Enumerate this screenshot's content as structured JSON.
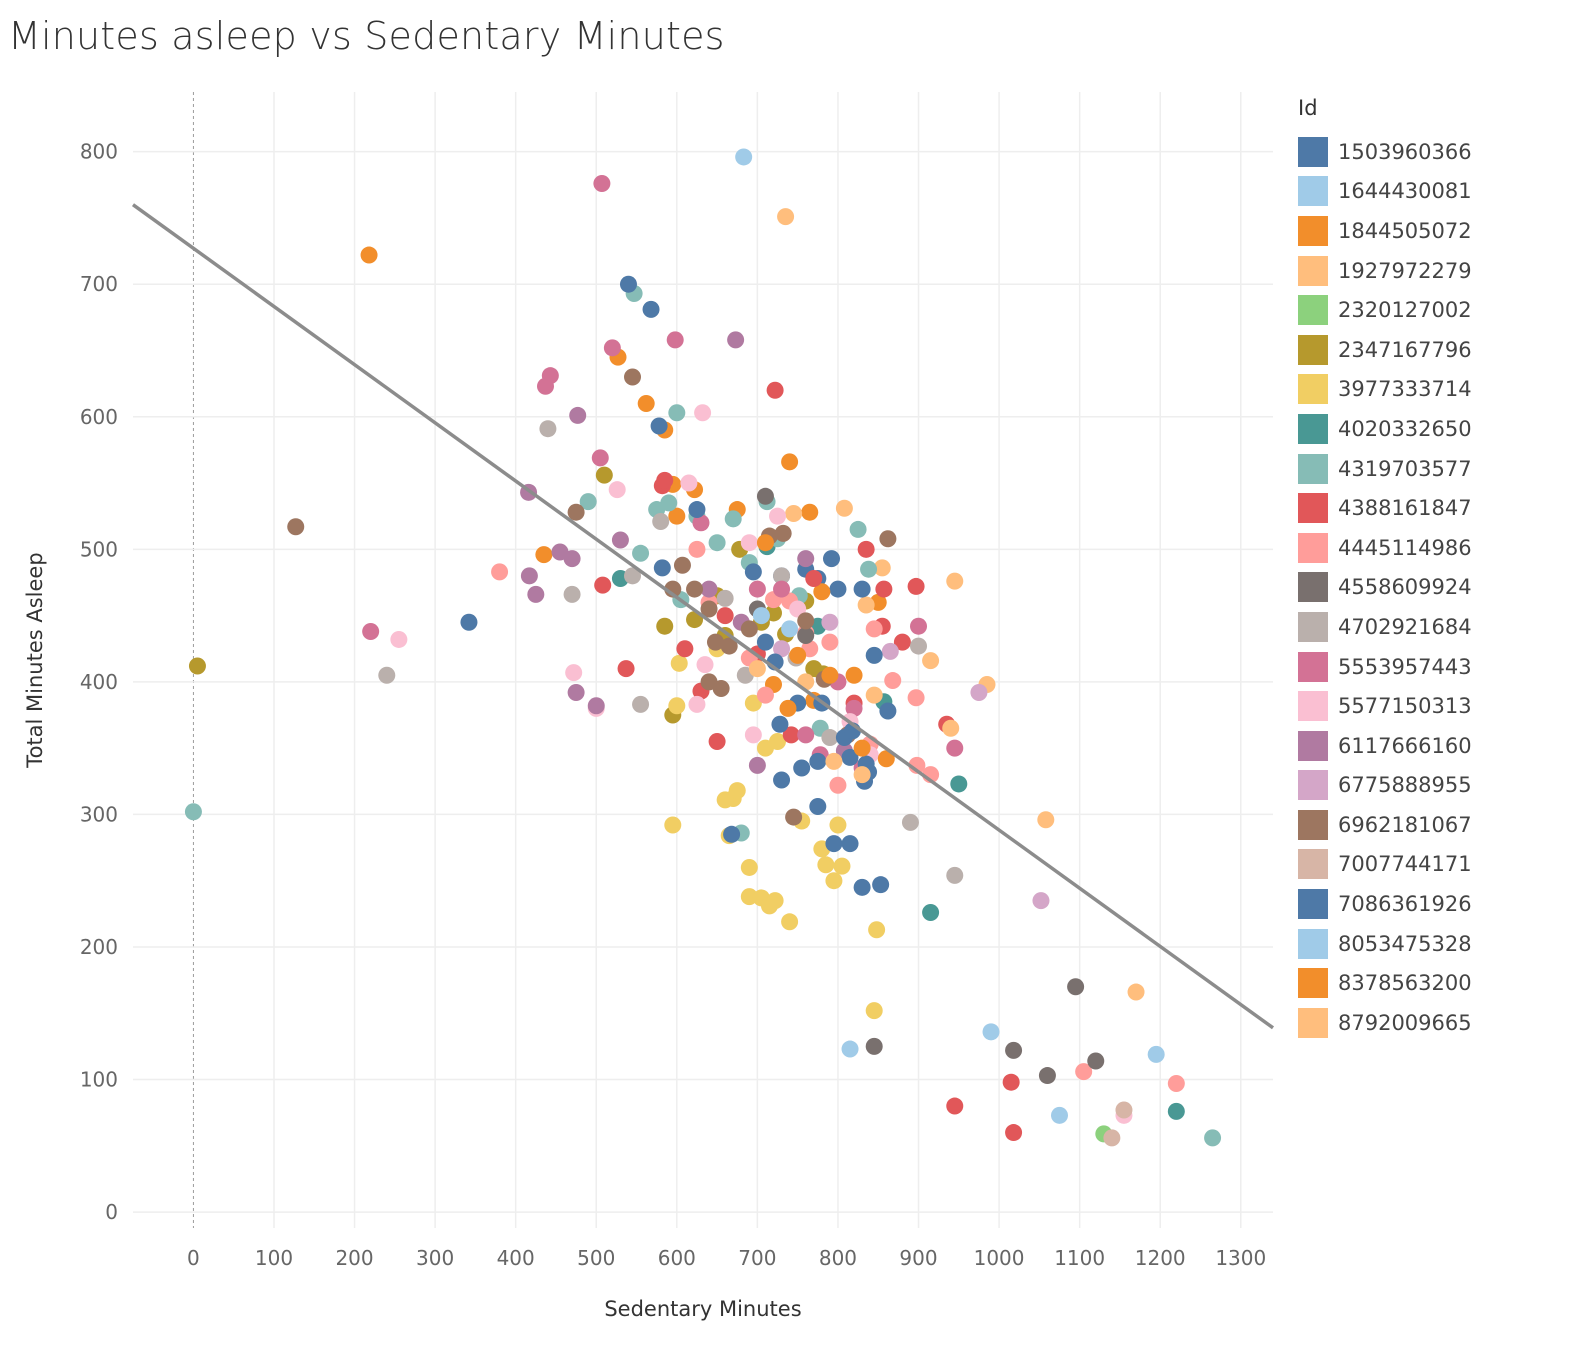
{
  "chart_data": {
    "type": "scatter",
    "title": "Minutes asleep vs Sedentary Minutes",
    "xlabel": "Sedentary Minutes",
    "ylabel": "Total Minutes Asleep",
    "xlim": [
      -75,
      1340
    ],
    "ylim": [
      -12,
      845
    ],
    "xticks": [
      "0",
      "100",
      "200",
      "300",
      "400",
      "500",
      "600",
      "700",
      "800",
      "900",
      "1000",
      "1100",
      "1200",
      "1300"
    ],
    "yticks": [
      "0",
      "100",
      "200",
      "300",
      "400",
      "500",
      "600",
      "700",
      "800"
    ],
    "grid": true,
    "legend_title": "Id",
    "legend_placement": "right",
    "trend_line": {
      "x": [
        -75,
        1340
      ],
      "y": [
        760,
        139
      ]
    },
    "series": [
      {
        "id": "1503960366",
        "color": "#4e79a7",
        "points": [
          [
            792,
            493
          ],
          [
            775,
            478
          ],
          [
            730,
            480
          ],
          [
            760,
            485
          ],
          [
            800,
            470
          ]
        ]
      },
      {
        "id": "1644430081",
        "color": "#a0cbe8",
        "points": [
          [
            683,
            796
          ],
          [
            815,
            123
          ],
          [
            990,
            136
          ],
          [
            1075,
            73
          ],
          [
            1195,
            119
          ]
        ]
      },
      {
        "id": "1844505072",
        "color": "#f28e2b",
        "points": [
          [
            218,
            722
          ],
          [
            527,
            645
          ],
          [
            562,
            610
          ],
          [
            585,
            590
          ],
          [
            595,
            549
          ],
          [
            600,
            525
          ],
          [
            622,
            545
          ],
          [
            675,
            530
          ],
          [
            740,
            566
          ],
          [
            765,
            528
          ],
          [
            780,
            468
          ],
          [
            820,
            405
          ],
          [
            850,
            460
          ],
          [
            435,
            496
          ],
          [
            720,
            398
          ],
          [
            770,
            386
          ]
        ]
      },
      {
        "id": "1927972279",
        "color": "#ffbe7d",
        "points": [
          [
            735,
            751
          ],
          [
            808,
            531
          ],
          [
            855,
            486
          ],
          [
            945,
            476
          ],
          [
            985,
            398
          ],
          [
            915,
            416
          ],
          [
            1058,
            296
          ],
          [
            1170,
            166
          ],
          [
            835,
            458
          ],
          [
            745,
            527
          ]
        ]
      },
      {
        "id": "2320127002",
        "color": "#8cd17d",
        "points": [
          [
            1130,
            59
          ]
        ]
      },
      {
        "id": "2347167796",
        "color": "#b6992d",
        "points": [
          [
            5,
            412
          ],
          [
            510,
            556
          ],
          [
            585,
            442
          ],
          [
            622,
            447
          ],
          [
            650,
            465
          ],
          [
            678,
            500
          ],
          [
            705,
            445
          ],
          [
            720,
            452
          ],
          [
            735,
            436
          ],
          [
            760,
            461
          ],
          [
            770,
            410
          ],
          [
            782,
            406
          ],
          [
            595,
            375
          ],
          [
            660,
            435
          ]
        ]
      },
      {
        "id": "3977333714",
        "color": "#f1ce63",
        "points": [
          [
            595,
            292
          ],
          [
            690,
            238
          ],
          [
            705,
            237
          ],
          [
            715,
            231
          ],
          [
            722,
            235
          ],
          [
            740,
            219
          ],
          [
            755,
            295
          ],
          [
            780,
            274
          ],
          [
            785,
            262
          ],
          [
            795,
            250
          ],
          [
            800,
            292
          ],
          [
            805,
            261
          ],
          [
            848,
            213
          ],
          [
            845,
            152
          ],
          [
            670,
            312
          ],
          [
            675,
            318
          ],
          [
            690,
            260
          ],
          [
            660,
            311
          ],
          [
            665,
            284
          ],
          [
            695,
            384
          ],
          [
            710,
            350
          ],
          [
            600,
            382
          ],
          [
            603,
            414
          ],
          [
            650,
            425
          ],
          [
            725,
            355
          ]
        ]
      },
      {
        "id": "4020332650",
        "color": "#499894",
        "points": [
          [
            530,
            478
          ],
          [
            712,
            502
          ],
          [
            775,
            442
          ],
          [
            857,
            385
          ],
          [
            915,
            226
          ],
          [
            950,
            323
          ],
          [
            1220,
            76
          ]
        ]
      },
      {
        "id": "4319703577",
        "color": "#86bcb6",
        "points": [
          [
            0,
            302
          ],
          [
            547,
            693
          ],
          [
            600,
            603
          ],
          [
            490,
            536
          ],
          [
            555,
            497
          ],
          [
            575,
            530
          ],
          [
            590,
            535
          ],
          [
            605,
            462
          ],
          [
            625,
            525
          ],
          [
            650,
            505
          ],
          [
            670,
            523
          ],
          [
            690,
            490
          ],
          [
            712,
            536
          ],
          [
            725,
            508
          ],
          [
            752,
            465
          ],
          [
            778,
            365
          ],
          [
            825,
            515
          ],
          [
            838,
            485
          ],
          [
            680,
            286
          ],
          [
            1265,
            56
          ]
        ]
      },
      {
        "id": "4388161847",
        "color": "#e15759",
        "points": [
          [
            722,
            620
          ],
          [
            582,
            548
          ],
          [
            585,
            552
          ],
          [
            508,
            473
          ],
          [
            537,
            410
          ],
          [
            610,
            425
          ],
          [
            630,
            393
          ],
          [
            650,
            355
          ],
          [
            700,
            421
          ],
          [
            742,
            360
          ],
          [
            770,
            478
          ],
          [
            820,
            384
          ],
          [
            835,
            500
          ],
          [
            855,
            442
          ],
          [
            857,
            470
          ],
          [
            880,
            430
          ],
          [
            897,
            472
          ],
          [
            935,
            368
          ],
          [
            945,
            80
          ],
          [
            1015,
            98
          ],
          [
            1018,
            60
          ],
          [
            660,
            450
          ]
        ]
      },
      {
        "id": "4445114986",
        "color": "#ff9d9a",
        "points": [
          [
            380,
            483
          ],
          [
            625,
            500
          ],
          [
            690,
            418
          ],
          [
            720,
            462
          ],
          [
            740,
            461
          ],
          [
            760,
            437
          ],
          [
            790,
            430
          ],
          [
            800,
            322
          ],
          [
            840,
            353
          ],
          [
            845,
            440
          ],
          [
            868,
            401
          ],
          [
            897,
            388
          ],
          [
            898,
            337
          ],
          [
            915,
            330
          ],
          [
            1105,
            106
          ],
          [
            1220,
            97
          ],
          [
            640,
            460
          ],
          [
            710,
            390
          ],
          [
            765,
            425
          ]
        ]
      },
      {
        "id": "4558609924",
        "color": "#79706e",
        "points": [
          [
            700,
            455
          ],
          [
            760,
            435
          ],
          [
            1018,
            122
          ],
          [
            1060,
            103
          ],
          [
            1095,
            170
          ],
          [
            1120,
            114
          ],
          [
            845,
            125
          ],
          [
            710,
            540
          ]
        ]
      },
      {
        "id": "4702921684",
        "color": "#bab0ac",
        "points": [
          [
            240,
            405
          ],
          [
            440,
            591
          ],
          [
            470,
            466
          ],
          [
            555,
            383
          ],
          [
            545,
            480
          ],
          [
            580,
            521
          ],
          [
            685,
            405
          ],
          [
            730,
            480
          ],
          [
            748,
            418
          ],
          [
            790,
            358
          ],
          [
            890,
            294
          ],
          [
            900,
            427
          ],
          [
            945,
            254
          ],
          [
            660,
            463
          ]
        ]
      },
      {
        "id": "5553957443",
        "color": "#d37295",
        "points": [
          [
            507,
            776
          ],
          [
            598,
            658
          ],
          [
            520,
            652
          ],
          [
            443,
            631
          ],
          [
            437,
            623
          ],
          [
            505,
            569
          ],
          [
            220,
            438
          ],
          [
            630,
            520
          ],
          [
            700,
            470
          ],
          [
            730,
            470
          ],
          [
            760,
            360
          ],
          [
            778,
            345
          ],
          [
            800,
            400
          ],
          [
            820,
            380
          ],
          [
            830,
            335
          ],
          [
            900,
            442
          ],
          [
            945,
            350
          ]
        ]
      },
      {
        "id": "5577150313",
        "color": "#fabfd2",
        "points": [
          [
            632,
            603
          ],
          [
            526,
            545
          ],
          [
            615,
            550
          ],
          [
            255,
            432
          ],
          [
            472,
            407
          ],
          [
            500,
            380
          ],
          [
            625,
            383
          ],
          [
            635,
            413
          ],
          [
            690,
            505
          ],
          [
            695,
            360
          ],
          [
            725,
            525
          ],
          [
            750,
            455
          ],
          [
            815,
            370
          ],
          [
            840,
            345
          ],
          [
            1155,
            73
          ]
        ]
      },
      {
        "id": "6117666160",
        "color": "#b07aa1",
        "points": [
          [
            673,
            658
          ],
          [
            477,
            601
          ],
          [
            416,
            543
          ],
          [
            417,
            480
          ],
          [
            425,
            466
          ],
          [
            455,
            498
          ],
          [
            470,
            493
          ],
          [
            475,
            392
          ],
          [
            500,
            382
          ],
          [
            530,
            507
          ],
          [
            640,
            470
          ],
          [
            680,
            445
          ],
          [
            700,
            337
          ],
          [
            760,
            493
          ],
          [
            808,
            348
          ]
        ]
      },
      {
        "id": "6775888955",
        "color": "#d4a6c8",
        "points": [
          [
            975,
            392
          ],
          [
            1052,
            235
          ],
          [
            865,
            423
          ],
          [
            730,
            425
          ],
          [
            790,
            445
          ]
        ]
      },
      {
        "id": "6962181067",
        "color": "#9d7660",
        "points": [
          [
            127,
            517
          ],
          [
            475,
            528
          ],
          [
            545,
            630
          ],
          [
            607,
            488
          ],
          [
            622,
            470
          ],
          [
            640,
            455
          ],
          [
            648,
            430
          ],
          [
            655,
            395
          ],
          [
            665,
            427
          ],
          [
            690,
            440
          ],
          [
            715,
            510
          ],
          [
            732,
            512
          ],
          [
            745,
            298
          ],
          [
            760,
            446
          ],
          [
            783,
            402
          ],
          [
            812,
            360
          ],
          [
            862,
            508
          ],
          [
            595,
            470
          ],
          [
            640,
            400
          ]
        ]
      },
      {
        "id": "7007744171",
        "color": "#d7b5a6",
        "points": [
          [
            1140,
            56
          ],
          [
            1155,
            77
          ]
        ]
      },
      {
        "id": "7086361926",
        "color": "#4e79a7",
        "points": [
          [
            540,
            700
          ],
          [
            568,
            681
          ],
          [
            578,
            593
          ],
          [
            342,
            445
          ],
          [
            582,
            486
          ],
          [
            625,
            530
          ],
          [
            668,
            285
          ],
          [
            695,
            483
          ],
          [
            710,
            430
          ],
          [
            722,
            415
          ],
          [
            728,
            368
          ],
          [
            730,
            326
          ],
          [
            750,
            384
          ],
          [
            755,
            335
          ],
          [
            775,
            340
          ],
          [
            780,
            384
          ],
          [
            795,
            278
          ],
          [
            808,
            358
          ],
          [
            815,
            343
          ],
          [
            815,
            278
          ],
          [
            818,
            363
          ],
          [
            830,
            470
          ],
          [
            833,
            325
          ],
          [
            835,
            338
          ],
          [
            838,
            332
          ],
          [
            845,
            420
          ],
          [
            853,
            247
          ],
          [
            862,
            378
          ],
          [
            830,
            245
          ],
          [
            775,
            306
          ]
        ]
      },
      {
        "id": "8053475328",
        "color": "#a0cbe8",
        "points": [
          [
            705,
            450
          ],
          [
            740,
            440
          ]
        ]
      },
      {
        "id": "8378563200",
        "color": "#f28e2b",
        "points": [
          [
            710,
            505
          ],
          [
            750,
            420
          ],
          [
            790,
            405
          ],
          [
            830,
            350
          ],
          [
            860,
            342
          ],
          [
            738,
            380
          ]
        ]
      },
      {
        "id": "8792009665",
        "color": "#ffbe7d",
        "points": [
          [
            795,
            340
          ],
          [
            830,
            330
          ],
          [
            845,
            390
          ],
          [
            940,
            365
          ],
          [
            760,
            400
          ],
          [
            700,
            410
          ]
        ]
      }
    ]
  }
}
